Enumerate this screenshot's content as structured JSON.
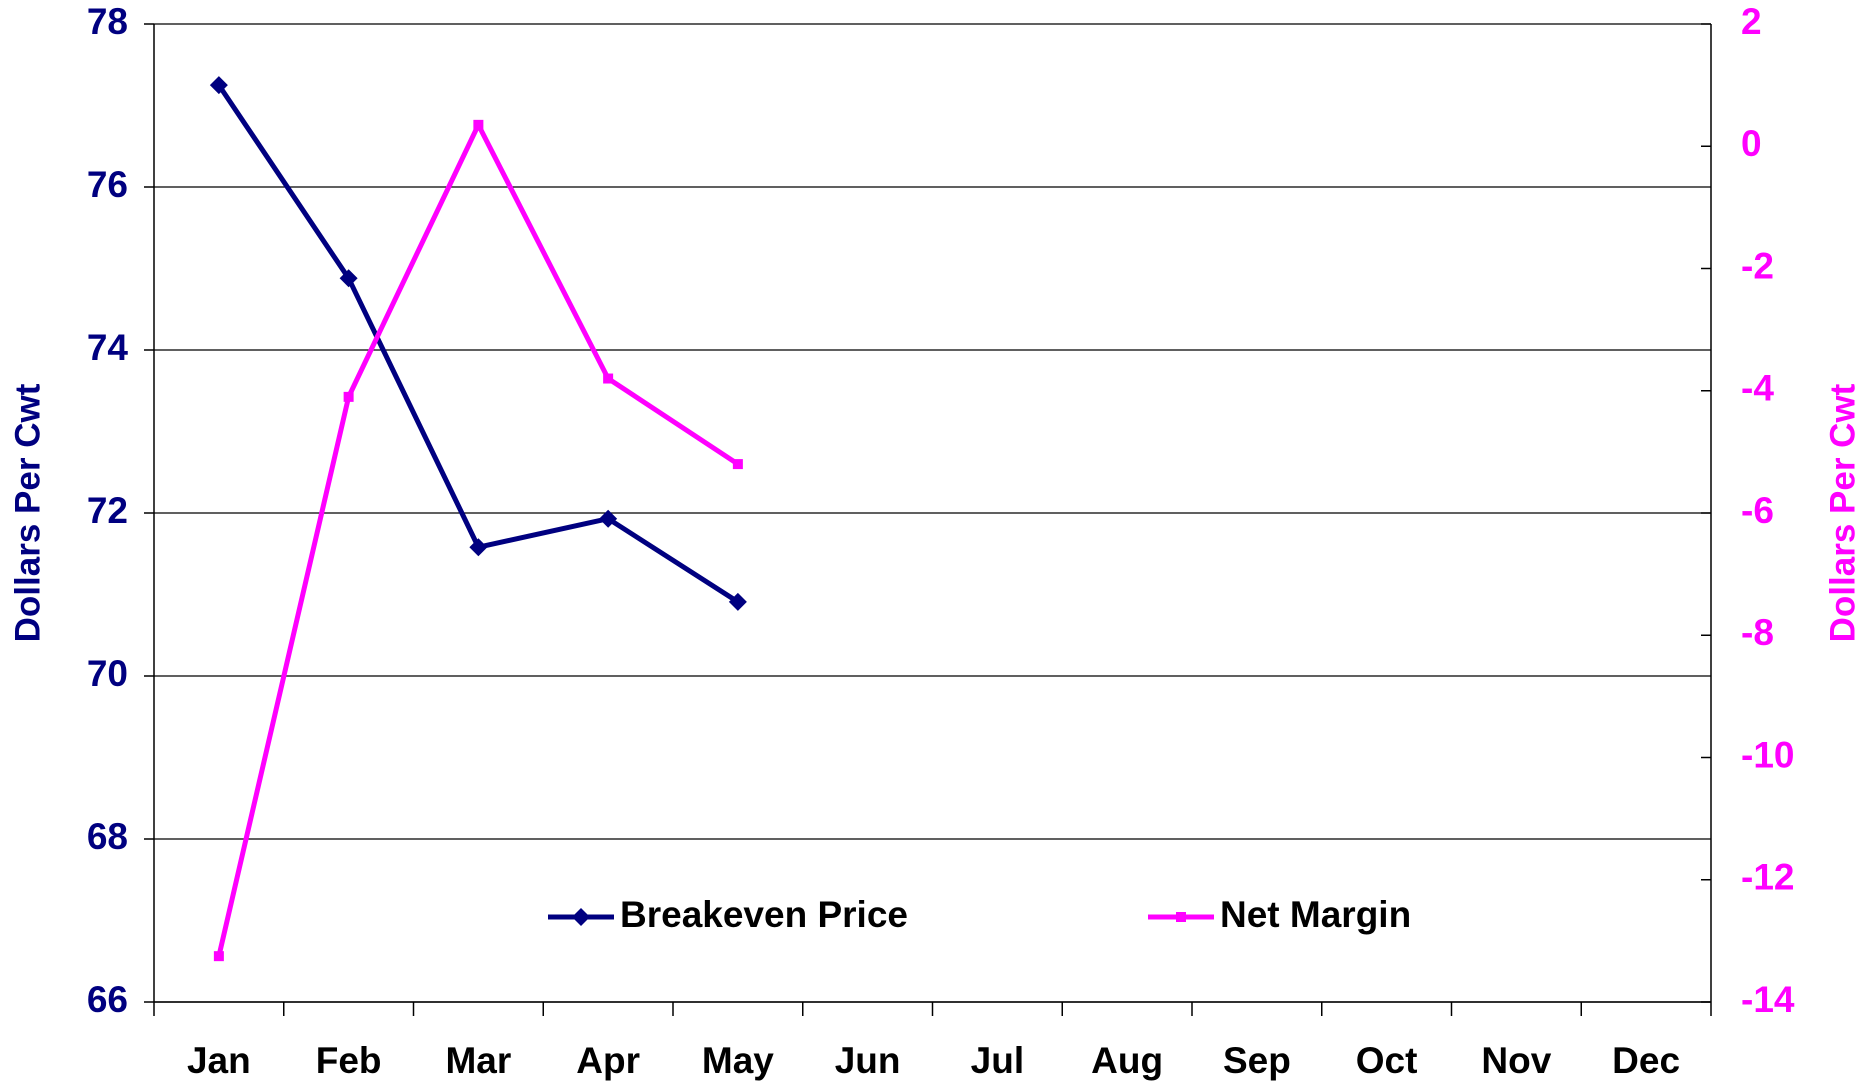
{
  "chart_data": {
    "type": "line",
    "categories": [
      "Jan",
      "Feb",
      "Mar",
      "Apr",
      "May",
      "Jun",
      "Jul",
      "Aug",
      "Sep",
      "Oct",
      "Nov",
      "Dec"
    ],
    "series": [
      {
        "name": "Breakeven Price",
        "color": "#000080",
        "marker": "diamond",
        "values": [
          77.25,
          74.88,
          71.58,
          71.93,
          70.91,
          null,
          null,
          null,
          null,
          null,
          null,
          null
        ]
      },
      {
        "name": "Net Margin",
        "color": "#ff00ff",
        "marker": "square",
        "axis": "y2",
        "values": [
          -13.25,
          -4.1,
          0.35,
          -3.8,
          -5.2,
          null,
          null,
          null,
          null,
          null,
          null,
          null
        ]
      }
    ],
    "ylabel": "Dollars Per Cwt",
    "y2label": "Dollars Per Cwt",
    "ylim": [
      66,
      78
    ],
    "yticks": [
      66,
      68,
      70,
      72,
      74,
      76,
      78
    ],
    "y2lim": [
      -14,
      2
    ],
    "y2ticks": [
      -14,
      -12,
      -10,
      -8,
      -6,
      -4,
      -2,
      0,
      2
    ],
    "grid": true
  }
}
